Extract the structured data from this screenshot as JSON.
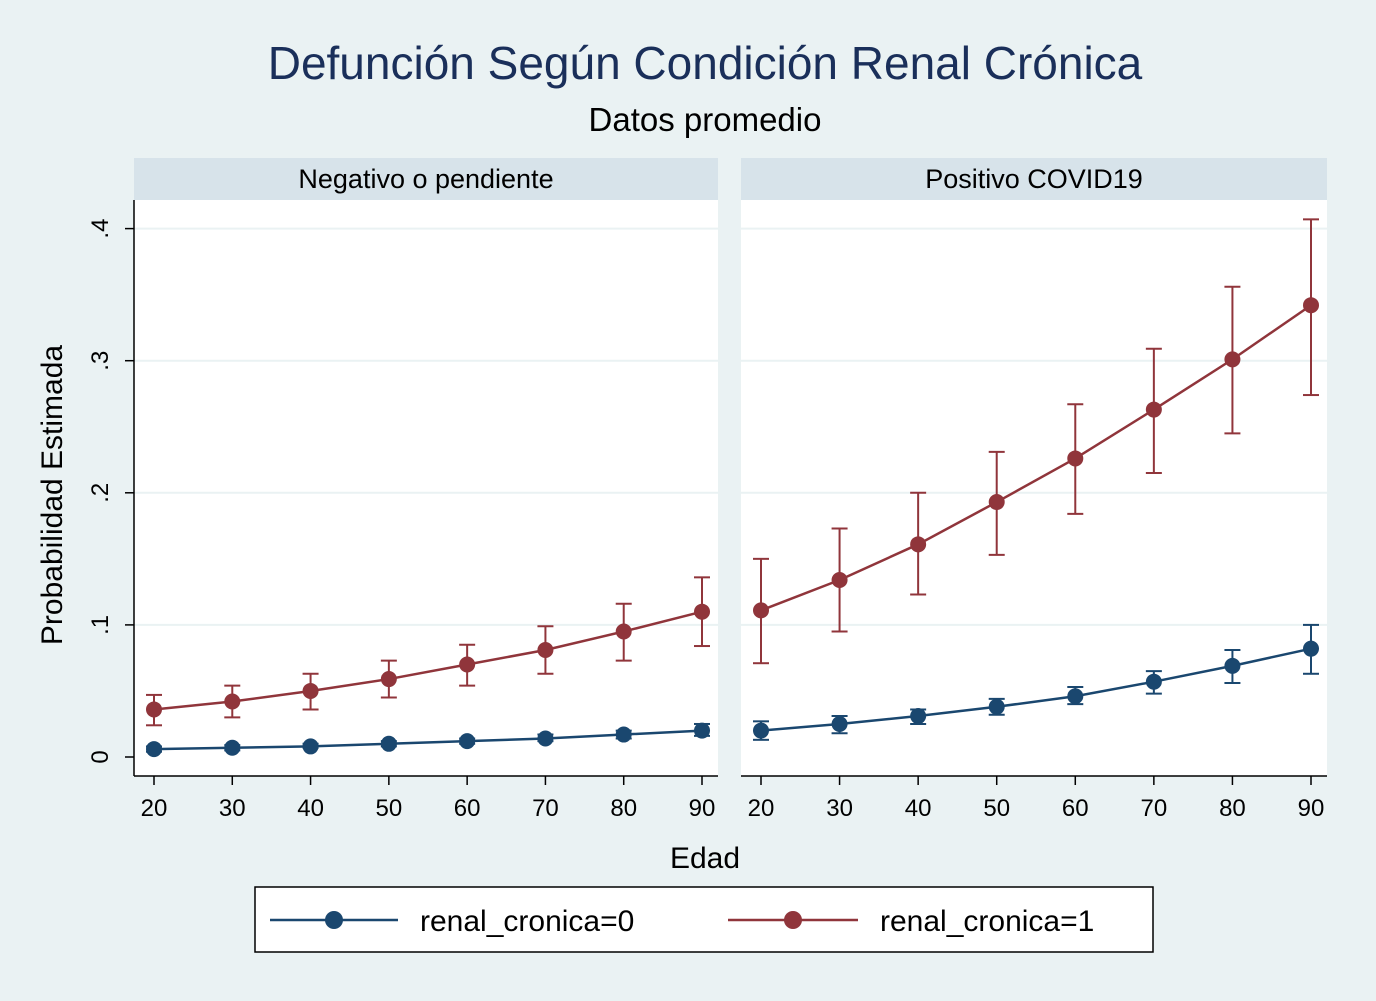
{
  "chart_data": {
    "type": "line",
    "title": "Defunción Según Condición Renal Crónica",
    "subtitle": "Datos promedio",
    "xlabel": "Edad",
    "ylabel": "Probabilidad Estimada",
    "x_ticks": [
      "20",
      "30",
      "40",
      "50",
      "60",
      "70",
      "80",
      "90"
    ],
    "y_ticks": [
      "0",
      ".1",
      ".2",
      ".3",
      ".4"
    ],
    "ylim": [
      0,
      0.4
    ],
    "xlim": [
      20,
      90
    ],
    "grid": true,
    "legend_position": "bottom",
    "x": [
      20,
      30,
      40,
      50,
      60,
      70,
      80,
      90
    ],
    "panels": [
      {
        "title": "Negativo o pendiente",
        "series": [
          {
            "name": "renal_cronica=0",
            "color": "#1a476f",
            "values": [
              0.006,
              0.007,
              0.008,
              0.01,
              0.012,
              0.014,
              0.017,
              0.02
            ],
            "ci_low": [
              0.004,
              0.005,
              0.007,
              0.008,
              0.01,
              0.012,
              0.014,
              0.016
            ],
            "ci_high": [
              0.008,
              0.009,
              0.01,
              0.012,
              0.014,
              0.017,
              0.02,
              0.025
            ]
          },
          {
            "name": "renal_cronica=1",
            "color": "#90353b",
            "values": [
              0.036,
              0.042,
              0.05,
              0.059,
              0.07,
              0.081,
              0.095,
              0.11
            ],
            "ci_low": [
              0.024,
              0.03,
              0.036,
              0.045,
              0.054,
              0.063,
              0.073,
              0.084
            ],
            "ci_high": [
              0.047,
              0.054,
              0.063,
              0.073,
              0.085,
              0.099,
              0.116,
              0.136
            ]
          }
        ]
      },
      {
        "title": "Positivo COVID19",
        "series": [
          {
            "name": "renal_cronica=0",
            "color": "#1a476f",
            "values": [
              0.02,
              0.025,
              0.031,
              0.038,
              0.046,
              0.057,
              0.069,
              0.082
            ],
            "ci_low": [
              0.013,
              0.018,
              0.025,
              0.032,
              0.04,
              0.048,
              0.056,
              0.063
            ],
            "ci_high": [
              0.027,
              0.031,
              0.036,
              0.044,
              0.053,
              0.065,
              0.081,
              0.1
            ]
          },
          {
            "name": "renal_cronica=1",
            "color": "#90353b",
            "values": [
              0.111,
              0.134,
              0.161,
              0.193,
              0.226,
              0.263,
              0.301,
              0.342
            ],
            "ci_low": [
              0.071,
              0.095,
              0.123,
              0.153,
              0.184,
              0.215,
              0.245,
              0.274
            ],
            "ci_high": [
              0.15,
              0.173,
              0.2,
              0.231,
              0.267,
              0.309,
              0.356,
              0.407
            ]
          }
        ]
      }
    ]
  }
}
